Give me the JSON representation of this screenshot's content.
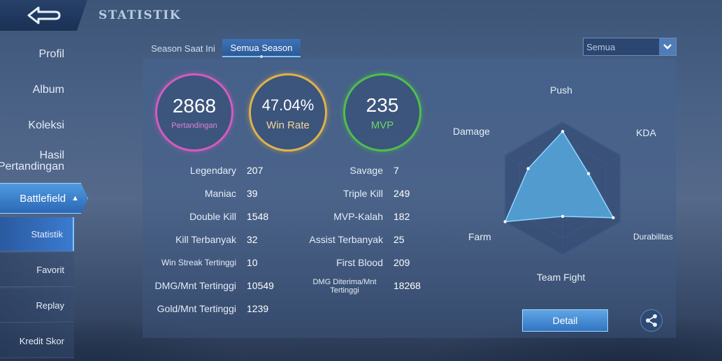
{
  "header": {
    "title": "STATISTIK"
  },
  "sidebar": {
    "items": [
      {
        "label": "Profil"
      },
      {
        "label": "Album"
      },
      {
        "label": "Koleksi"
      },
      {
        "label": "Hasil\nPertandingan"
      },
      {
        "label": "Battlefield"
      }
    ],
    "subitems": [
      {
        "label": "Statistik"
      },
      {
        "label": "Favorit"
      },
      {
        "label": "Replay"
      },
      {
        "label": "Kredit Skor"
      }
    ]
  },
  "tabs": [
    {
      "label": "Season Saat Ini"
    },
    {
      "label": "Semua Season"
    }
  ],
  "filter": {
    "selected": "Semua"
  },
  "summary": {
    "matches": {
      "value": "2868",
      "label": "Pertandingan",
      "color": "#d35bc0"
    },
    "winrate": {
      "value": "47.04%",
      "label": "Win Rate",
      "color": "#e0b24a"
    },
    "mvp": {
      "value": "235",
      "label": "MVP",
      "color": "#4fbf4a"
    }
  },
  "stats_left": [
    {
      "label": "Legendary",
      "value": "207"
    },
    {
      "label": "Maniac",
      "value": "39"
    },
    {
      "label": "Double Kill",
      "value": "1548"
    },
    {
      "label": "Kill Terbanyak",
      "value": "32"
    },
    {
      "label": "Win Streak Tertinggi",
      "value": "10"
    },
    {
      "label": "DMG/Mnt Tertinggi",
      "value": "10549"
    },
    {
      "label": "Gold/Mnt Tertinggi",
      "value": "1239"
    }
  ],
  "stats_right": [
    {
      "label": "Savage",
      "value": "7"
    },
    {
      "label": "Triple Kill",
      "value": "249"
    },
    {
      "label": "MVP-Kalah",
      "value": "182"
    },
    {
      "label": "Assist Terbanyak",
      "value": "25"
    },
    {
      "label": "First Blood",
      "value": "209"
    },
    {
      "label": "DMG Diterima/Mnt\nTertinggi",
      "value": "18268"
    }
  ],
  "radar": {
    "labels": {
      "push": "Push",
      "kda": "KDA",
      "durability": "Durabilitas",
      "teamfight": "Team Fight",
      "farm": "Farm",
      "damage": "Damage"
    },
    "values": {
      "push": 0.86,
      "kda": 0.45,
      "durability": 0.88,
      "teamfight": 0.42,
      "farm": 1.0,
      "damage": 0.6
    }
  },
  "actions": {
    "detail": "Detail"
  },
  "icons": {
    "back": "back-arrow-icon",
    "share": "share-icon",
    "dropdown": "chevron-down-icon"
  }
}
